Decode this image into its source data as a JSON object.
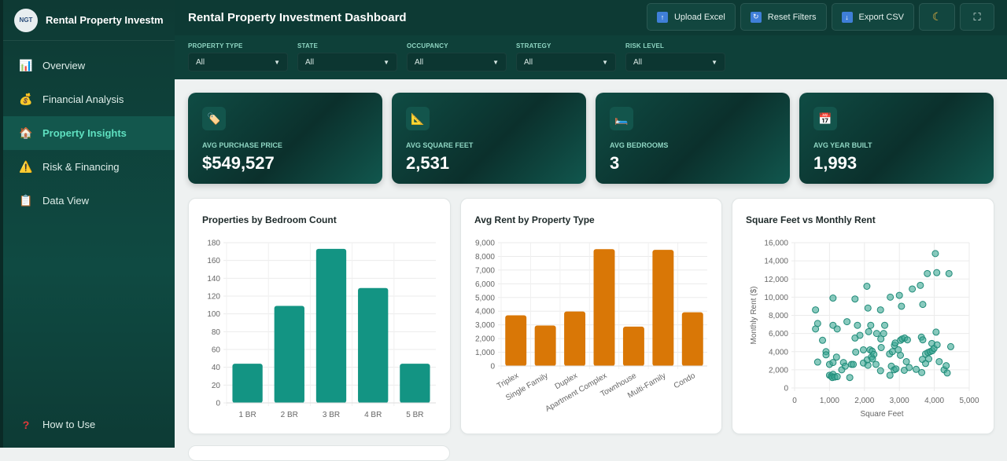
{
  "sidebar": {
    "logo_text": "NGT",
    "title": "Rental Property Investment Dashboard",
    "items": [
      {
        "label": "Overview",
        "icon": "bar-chart-icon"
      },
      {
        "label": "Financial Analysis",
        "icon": "money-bag-icon"
      },
      {
        "label": "Property Insights",
        "icon": "house-icon",
        "active": true
      },
      {
        "label": "Risk & Financing",
        "icon": "warning-icon"
      },
      {
        "label": "Data View",
        "icon": "clipboard-icon"
      }
    ],
    "help": "How to Use"
  },
  "header": {
    "title": "Rental Property Investment Dashboard",
    "upload": "Upload Excel",
    "reset": "Reset Filters",
    "export": "Export CSV"
  },
  "filters": [
    {
      "label": "PROPERTY TYPE",
      "value": "All"
    },
    {
      "label": "STATE",
      "value": "All"
    },
    {
      "label": "OCCUPANCY",
      "value": "All"
    },
    {
      "label": "STRATEGY",
      "value": "All"
    },
    {
      "label": "RISK LEVEL",
      "value": "All"
    }
  ],
  "kpis": [
    {
      "label": "AVG PURCHASE PRICE",
      "value": "$549,527",
      "icon": "price-tag-icon"
    },
    {
      "label": "AVG SQUARE FEET",
      "value": "2,531",
      "icon": "triangle-ruler-icon"
    },
    {
      "label": "AVG BEDROOMS",
      "value": "3",
      "icon": "bed-icon"
    },
    {
      "label": "AVG YEAR BUILT",
      "value": "1,993",
      "icon": "calendar-icon"
    }
  ],
  "colors": {
    "teal": "#139483",
    "orange": "#d97706",
    "scatter": "#3aa693"
  },
  "chart_data": [
    {
      "type": "bar",
      "title": "Properties by Bedroom Count",
      "categories": [
        "1 BR",
        "2 BR",
        "3 BR",
        "4 BR",
        "5 BR"
      ],
      "values": [
        44,
        109,
        173,
        129,
        44
      ],
      "ylim": [
        0,
        180
      ],
      "yticks": [
        0,
        20,
        40,
        60,
        80,
        100,
        120,
        140,
        160,
        180
      ],
      "grid": true
    },
    {
      "type": "bar",
      "title": "Avg Rent by Property Type",
      "categories": [
        "Triplex",
        "Single Family",
        "Duplex",
        "Apartment Complex",
        "Townhouse",
        "Multi-Family",
        "Condo"
      ],
      "values": [
        3700,
        2950,
        3980,
        8530,
        2870,
        8480,
        3920
      ],
      "ylim": [
        0,
        9000
      ],
      "yticks": [
        "0",
        "1,000",
        "2,000",
        "3,000",
        "4,000",
        "5,000",
        "6,000",
        "7,000",
        "8,000",
        "9,000"
      ],
      "grid": true
    },
    {
      "type": "scatter",
      "title": "Square Feet vs Monthly Rent",
      "xlabel": "Square Feet",
      "ylabel": "Monthly Rent ($)",
      "xlim": [
        0,
        5000
      ],
      "ylim": [
        0,
        16000
      ],
      "xticks": [
        "0",
        "1,000",
        "2,000",
        "3,000",
        "4,000",
        "5,000"
      ],
      "yticks": [
        "0",
        "2,000",
        "4,000",
        "6,000",
        "8,000",
        "10,000",
        "12,000",
        "14,000",
        "16,000"
      ],
      "grid": true,
      "points": [
        [
          600,
          8600
        ],
        [
          600,
          6500
        ],
        [
          660,
          7100
        ],
        [
          660,
          2850
        ],
        [
          800,
          5250
        ],
        [
          900,
          4000
        ],
        [
          900,
          3650
        ],
        [
          1000,
          1400
        ],
        [
          1050,
          1300
        ],
        [
          1100,
          1500
        ],
        [
          1080,
          1150
        ],
        [
          1150,
          1200
        ],
        [
          1220,
          1250
        ],
        [
          1000,
          2600
        ],
        [
          1100,
          2800
        ],
        [
          1100,
          9900
        ],
        [
          1100,
          6900
        ],
        [
          1220,
          6500
        ],
        [
          1200,
          3400
        ],
        [
          1350,
          2000
        ],
        [
          1400,
          2800
        ],
        [
          1500,
          7300
        ],
        [
          1450,
          2400
        ],
        [
          1580,
          1150
        ],
        [
          1630,
          2600
        ],
        [
          1680,
          2600
        ],
        [
          1730,
          9800
        ],
        [
          1730,
          5500
        ],
        [
          1750,
          3950
        ],
        [
          1800,
          6900
        ],
        [
          1870,
          5800
        ],
        [
          1970,
          4200
        ],
        [
          1970,
          2750
        ],
        [
          2070,
          11200
        ],
        [
          2100,
          8800
        ],
        [
          2120,
          6200
        ],
        [
          2100,
          2500
        ],
        [
          2080,
          3100
        ],
        [
          2180,
          6900
        ],
        [
          2160,
          4200
        ],
        [
          2220,
          4050
        ],
        [
          2200,
          3400
        ],
        [
          2270,
          3700
        ],
        [
          2230,
          3200
        ],
        [
          2330,
          2600
        ],
        [
          2350,
          6000
        ],
        [
          2460,
          8600
        ],
        [
          2470,
          5400
        ],
        [
          2480,
          4450
        ],
        [
          2460,
          1900
        ],
        [
          2550,
          6000
        ],
        [
          2580,
          6900
        ],
        [
          2740,
          10000
        ],
        [
          2720,
          3750
        ],
        [
          2730,
          1400
        ],
        [
          2770,
          2400
        ],
        [
          2800,
          4000
        ],
        [
          2860,
          4700
        ],
        [
          2880,
          4950
        ],
        [
          2850,
          2000
        ],
        [
          2900,
          2100
        ],
        [
          2970,
          4200
        ],
        [
          3000,
          10200
        ],
        [
          3030,
          3600
        ],
        [
          3060,
          9000
        ],
        [
          3030,
          5250
        ],
        [
          3080,
          5400
        ],
        [
          3150,
          5500
        ],
        [
          3140,
          1950
        ],
        [
          3200,
          2900
        ],
        [
          3230,
          5300
        ],
        [
          3280,
          2250
        ],
        [
          3370,
          10900
        ],
        [
          3480,
          2050
        ],
        [
          3600,
          11300
        ],
        [
          3630,
          5600
        ],
        [
          3670,
          5300
        ],
        [
          3670,
          9200
        ],
        [
          3640,
          1700
        ],
        [
          3660,
          3150
        ],
        [
          3750,
          3750
        ],
        [
          3750,
          2700
        ],
        [
          3800,
          12600
        ],
        [
          3820,
          3900
        ],
        [
          3840,
          3200
        ],
        [
          3880,
          4000
        ],
        [
          3930,
          4900
        ],
        [
          3940,
          4100
        ],
        [
          3990,
          4350
        ],
        [
          4030,
          14800
        ],
        [
          4070,
          12700
        ],
        [
          4050,
          6150
        ],
        [
          4080,
          4750
        ],
        [
          4140,
          2900
        ],
        [
          4280,
          2000
        ],
        [
          4340,
          2450
        ],
        [
          4370,
          1650
        ],
        [
          4420,
          12600
        ],
        [
          4470,
          4550
        ]
      ]
    }
  ]
}
